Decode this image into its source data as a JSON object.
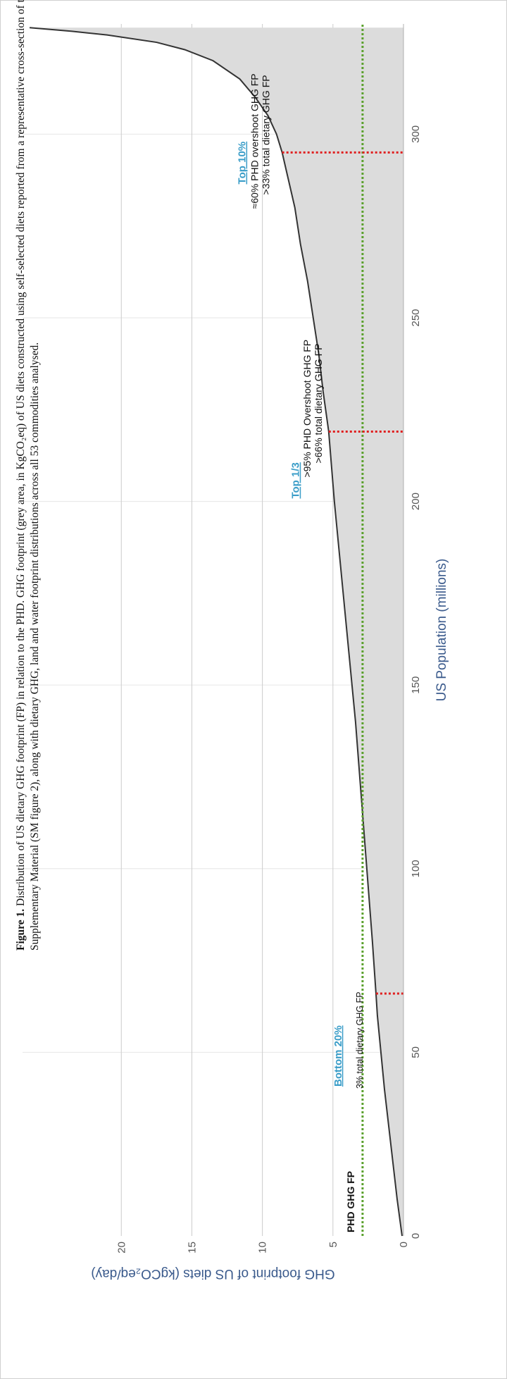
{
  "caption": {
    "label": "Figure 1.",
    "text": "Distribution of US dietary GHG footprint (FP) in relation to the PHD. GHG footprint (grey area, in KgCO₂eq) of US diets constructed using self-selected diets reported from a representative cross-section of the population. Equivalent values for each PHD food category can be found in the Supplementary Material (SM figure 2), along with dietary GHG, land and water footprint distributions across all 53 commodities analysed."
  },
  "chart_data": {
    "type": "area",
    "xlabel": "US Population (millions)",
    "ylabel": "GHG footprint of US diets (kgCO₂eq/day)",
    "xlim": [
      0,
      330
    ],
    "ylim": [
      0,
      27
    ],
    "xticks": [
      0,
      50,
      100,
      150,
      200,
      250,
      300
    ],
    "yticks": [
      0,
      5,
      10,
      15,
      20
    ],
    "grid": true,
    "fill_color": "#dcdcdc",
    "line_color": "#333333",
    "x": [
      0,
      10,
      20,
      30,
      40,
      50,
      60,
      66,
      80,
      100,
      120,
      140,
      160,
      180,
      200,
      219,
      230,
      240,
      250,
      260,
      270,
      280,
      290,
      295,
      300,
      305,
      310,
      315,
      320,
      323,
      325,
      327,
      328,
      329
    ],
    "y": [
      0.1,
      0.45,
      0.75,
      1.05,
      1.35,
      1.6,
      1.85,
      1.95,
      2.2,
      2.6,
      3.0,
      3.4,
      3.9,
      4.4,
      4.9,
      5.3,
      5.7,
      6.0,
      6.4,
      6.8,
      7.3,
      7.7,
      8.3,
      8.6,
      9.0,
      9.6,
      10.5,
      11.6,
      13.5,
      15.5,
      17.5,
      21.0,
      23.5,
      26.5
    ],
    "reference_line": {
      "y": 2.9,
      "label": "PHD GHG FP",
      "color": "#5aa02c"
    },
    "markers": [
      {
        "x": 66,
        "color": "#e02020",
        "head": "Bottom 20%",
        "lines": [
          "3% total dietary GHG FP"
        ]
      },
      {
        "x": 219,
        "color": "#e02020",
        "head": "Top 1/3",
        "lines": [
          ">95% PHD Overshoot GHG FP",
          ">66% total dietary GHG FP"
        ]
      },
      {
        "x": 295,
        "color": "#e02020",
        "head": "Top 10%",
        "lines": [
          "≈60% PHD overshoot GHG FP",
          ">33% total dietary GHG FP"
        ]
      }
    ]
  }
}
